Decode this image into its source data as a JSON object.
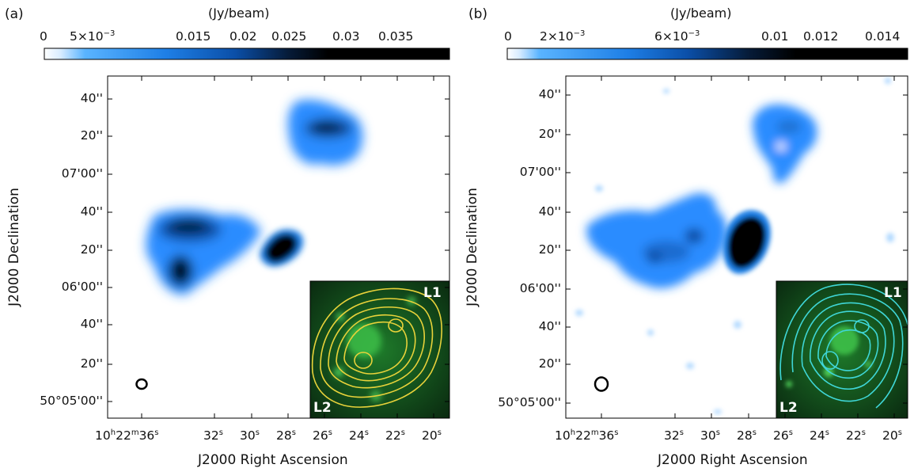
{
  "panels": [
    {
      "label": "(a)",
      "colorbar_unit": "(Jy/beam)",
      "colorbar_ticks": [
        "0",
        "5×10−3",
        "0.015",
        "0.02",
        "0.025",
        "0.03",
        "0.035"
      ],
      "y_ticks": [
        "40''",
        "20''",
        "07'00''",
        "40''",
        "20''",
        "06'00''",
        "40''",
        "20''",
        "50°05'00''"
      ],
      "x_ticks": [
        "10h22m36s",
        "32s",
        "30s",
        "28s",
        "26s",
        "24s",
        "22s",
        "20s"
      ],
      "xlabel": "J2000 Right Ascension",
      "ylabel": "J2000 Declination",
      "inset_labels": [
        "L1",
        "L2"
      ],
      "contour_color": "#e8d23a"
    },
    {
      "label": "(b)",
      "colorbar_unit": "(Jy/beam)",
      "colorbar_ticks": [
        "0",
        "2×10−3",
        "6×10−3",
        "0.01",
        "0.012",
        "0.014"
      ],
      "y_ticks": [
        "40''",
        "20''",
        "07'00''",
        "40''",
        "20''",
        "06'00''",
        "40''",
        "20''",
        "50°05'00''"
      ],
      "x_ticks": [
        "10h22m36s",
        "32s",
        "30s",
        "28s",
        "26s",
        "24s",
        "22s",
        "20s"
      ],
      "xlabel": "J2000 Right Ascension",
      "ylabel": "J2000 Declination",
      "inset_labels": [
        "L1",
        "L2"
      ],
      "contour_color": "#3fd6d6"
    }
  ]
}
